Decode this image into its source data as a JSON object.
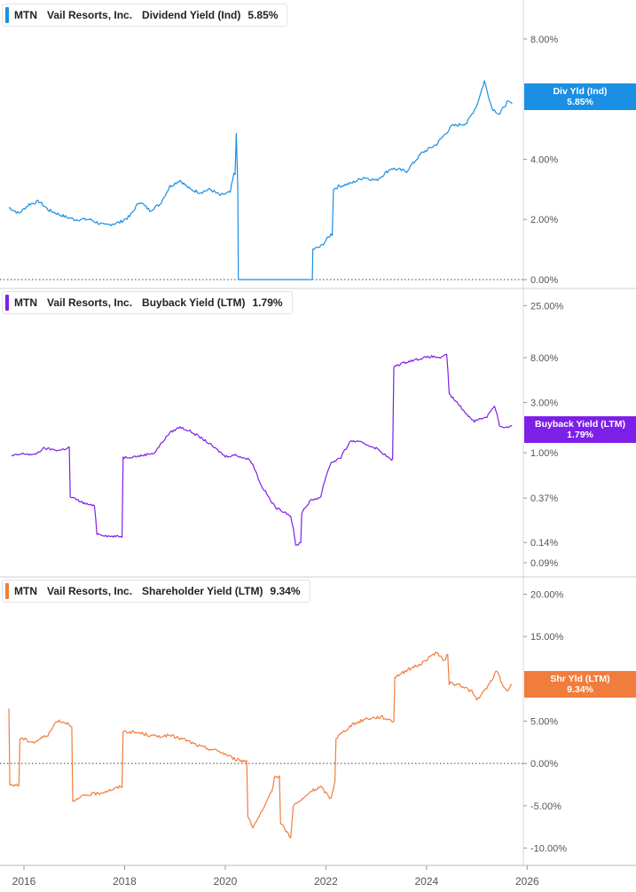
{
  "chart_data": [
    {
      "type": "line",
      "ticker": "MTN",
      "company": "Vail Resorts, Inc.",
      "metric": "Dividend Yield (Ind)",
      "current_value": "5.85%",
      "flag_label": "Div Yld (Ind)",
      "color": "#1a8fe3",
      "ylim": [
        0,
        9
      ],
      "yticks": [
        0,
        2,
        4,
        8
      ],
      "tick_labels": [
        "0.00%",
        "2.00%",
        "4.00%",
        "8.00%"
      ],
      "zero_line": 0,
      "series": [
        {
          "name": "Dividend Yield (Ind)",
          "x": [
            2015.7,
            2015.9,
            2016.1,
            2016.3,
            2016.5,
            2016.8,
            2017.0,
            2017.3,
            2017.6,
            2017.9,
            2018.1,
            2018.3,
            2018.5,
            2018.7,
            2018.9,
            2019.1,
            2019.3,
            2019.5,
            2019.7,
            2019.9,
            2020.1,
            2020.17,
            2020.22,
            2020.25,
            2020.26,
            2021.0,
            2021.5,
            2021.73,
            2021.74,
            2021.9,
            2022.1,
            2022.15,
            2022.25,
            2022.5,
            2022.75,
            2023.0,
            2023.3,
            2023.6,
            2023.9,
            2024.2,
            2024.5,
            2024.8,
            2025.0,
            2025.15,
            2025.3,
            2025.45,
            2025.6,
            2025.7
          ],
          "y": [
            2.4,
            2.2,
            2.5,
            2.6,
            2.3,
            2.1,
            2.0,
            2.0,
            1.8,
            1.9,
            2.1,
            2.6,
            2.3,
            2.5,
            3.1,
            3.3,
            3.0,
            2.9,
            3.0,
            2.8,
            2.9,
            3.5,
            4.9,
            3.0,
            0.0,
            0.0,
            0.0,
            0.0,
            1.0,
            1.1,
            1.5,
            3.0,
            3.1,
            3.2,
            3.4,
            3.3,
            3.7,
            3.6,
            4.2,
            4.5,
            5.1,
            5.2,
            5.8,
            6.6,
            5.7,
            5.5,
            5.9,
            5.85
          ]
        }
      ]
    },
    {
      "type": "line",
      "ticker": "MTN",
      "company": "Vail Resorts, Inc.",
      "metric": "Buyback Yield (LTM)",
      "current_value": "1.79%",
      "flag_label": "Buyback Yield (LTM)",
      "color": "#7d1fe8",
      "scale": "log",
      "ylim": [
        0.08,
        30
      ],
      "yticks": [
        0.09,
        0.14,
        0.37,
        1.0,
        3.0,
        8.0,
        25.0
      ],
      "tick_labels": [
        "0.09%",
        "0.14%",
        "0.37%",
        "1.00%",
        "3.00%",
        "8.00%",
        "25.00%"
      ],
      "series": [
        {
          "name": "Buyback Yield (LTM)",
          "x": [
            2015.75,
            2016.0,
            2016.2,
            2016.4,
            2016.7,
            2016.9,
            2016.92,
            2017.2,
            2017.4,
            2017.45,
            2017.7,
            2017.95,
            2017.97,
            2018.3,
            2018.6,
            2018.8,
            2018.9,
            2019.1,
            2019.3,
            2019.5,
            2019.8,
            2020.0,
            2020.2,
            2020.5,
            2020.7,
            2020.9,
            2021.0,
            2021.2,
            2021.3,
            2021.4,
            2021.5,
            2021.52,
            2021.7,
            2021.9,
            2022.1,
            2022.3,
            2022.5,
            2022.7,
            2023.0,
            2023.3,
            2023.35,
            2023.6,
            2023.9,
            2024.1,
            2024.3,
            2024.4,
            2024.45,
            2024.6,
            2024.8,
            2024.95,
            2025.2,
            2025.35,
            2025.45,
            2025.55,
            2025.7
          ],
          "y": [
            0.93,
            0.98,
            0.95,
            1.1,
            1.05,
            1.12,
            0.38,
            0.33,
            0.31,
            0.17,
            0.16,
            0.16,
            0.9,
            0.93,
            1.0,
            1.35,
            1.55,
            1.75,
            1.6,
            1.4,
            1.1,
            0.92,
            0.95,
            0.85,
            0.5,
            0.35,
            0.3,
            0.27,
            0.25,
            0.13,
            0.14,
            0.27,
            0.35,
            0.38,
            0.8,
            0.9,
            1.3,
            1.25,
            1.1,
            0.85,
            6.6,
            7.3,
            7.9,
            8.2,
            8.0,
            8.5,
            3.6,
            3.0,
            2.3,
            2.0,
            2.2,
            2.8,
            1.8,
            1.7,
            1.79
          ]
        }
      ]
    },
    {
      "type": "line",
      "ticker": "MTN",
      "company": "Vail Resorts, Inc.",
      "metric": "Shareholder Yield (LTM)",
      "current_value": "9.34%",
      "flag_label": "Shr Yld (LTM)",
      "color": "#f07d3c",
      "ylim": [
        -11,
        21
      ],
      "yticks": [
        -10,
        -5,
        0,
        5,
        15,
        20
      ],
      "tick_labels": [
        "-10.00%",
        "-5.00%",
        "0.00%",
        "5.00%",
        "15.00%",
        "20.00%"
      ],
      "zero_line": 0,
      "series": [
        {
          "name": "Shareholder Yield (LTM)",
          "x": [
            2015.7,
            2015.72,
            2015.9,
            2015.92,
            2016.2,
            2016.5,
            2016.65,
            2016.85,
            2016.95,
            2016.97,
            2017.2,
            2017.5,
            2017.8,
            2017.95,
            2017.97,
            2018.3,
            2018.6,
            2018.9,
            2019.2,
            2019.5,
            2019.9,
            2020.2,
            2020.35,
            2020.45,
            2020.55,
            2020.8,
            2020.95,
            2020.98,
            2021.1,
            2021.3,
            2021.35,
            2021.55,
            2021.7,
            2021.9,
            2022.1,
            2022.18,
            2022.2,
            2022.5,
            2022.8,
            2023.1,
            2023.35,
            2023.37,
            2023.6,
            2023.9,
            2024.2,
            2024.35,
            2024.42,
            2024.45,
            2024.7,
            2024.9,
            2025.0,
            2025.2,
            2025.4,
            2025.5,
            2025.6,
            2025.7
          ],
          "y": [
            6.3,
            -2.5,
            -2.6,
            3.0,
            2.5,
            3.5,
            5.1,
            4.8,
            4.5,
            -4.6,
            -3.8,
            -3.5,
            -3.0,
            -2.7,
            3.8,
            3.6,
            3.2,
            3.3,
            2.8,
            2.0,
            1.4,
            0.5,
            0.3,
            -6.2,
            -7.5,
            -5.0,
            -2.8,
            -1.5,
            -7.0,
            -8.8,
            -5.0,
            -4.2,
            -3.3,
            -2.8,
            -4.2,
            -2.0,
            3.0,
            4.5,
            5.3,
            5.5,
            5.0,
            10.2,
            11.0,
            11.8,
            13.2,
            12.0,
            13.0,
            9.5,
            9.2,
            8.5,
            7.5,
            8.9,
            11.0,
            9.4,
            8.6,
            9.34
          ]
        }
      ]
    }
  ],
  "x_axis": {
    "range": [
      2015.7,
      2026.1
    ],
    "ticks": [
      2016,
      2018,
      2020,
      2022,
      2024,
      2026
    ],
    "tick_labels": [
      "2016",
      "2018",
      "2020",
      "2022",
      "2024",
      "2026"
    ]
  },
  "colors": {
    "grid": "#d9d9d9",
    "axis_text": "#555555",
    "zero_line": "#444444"
  }
}
